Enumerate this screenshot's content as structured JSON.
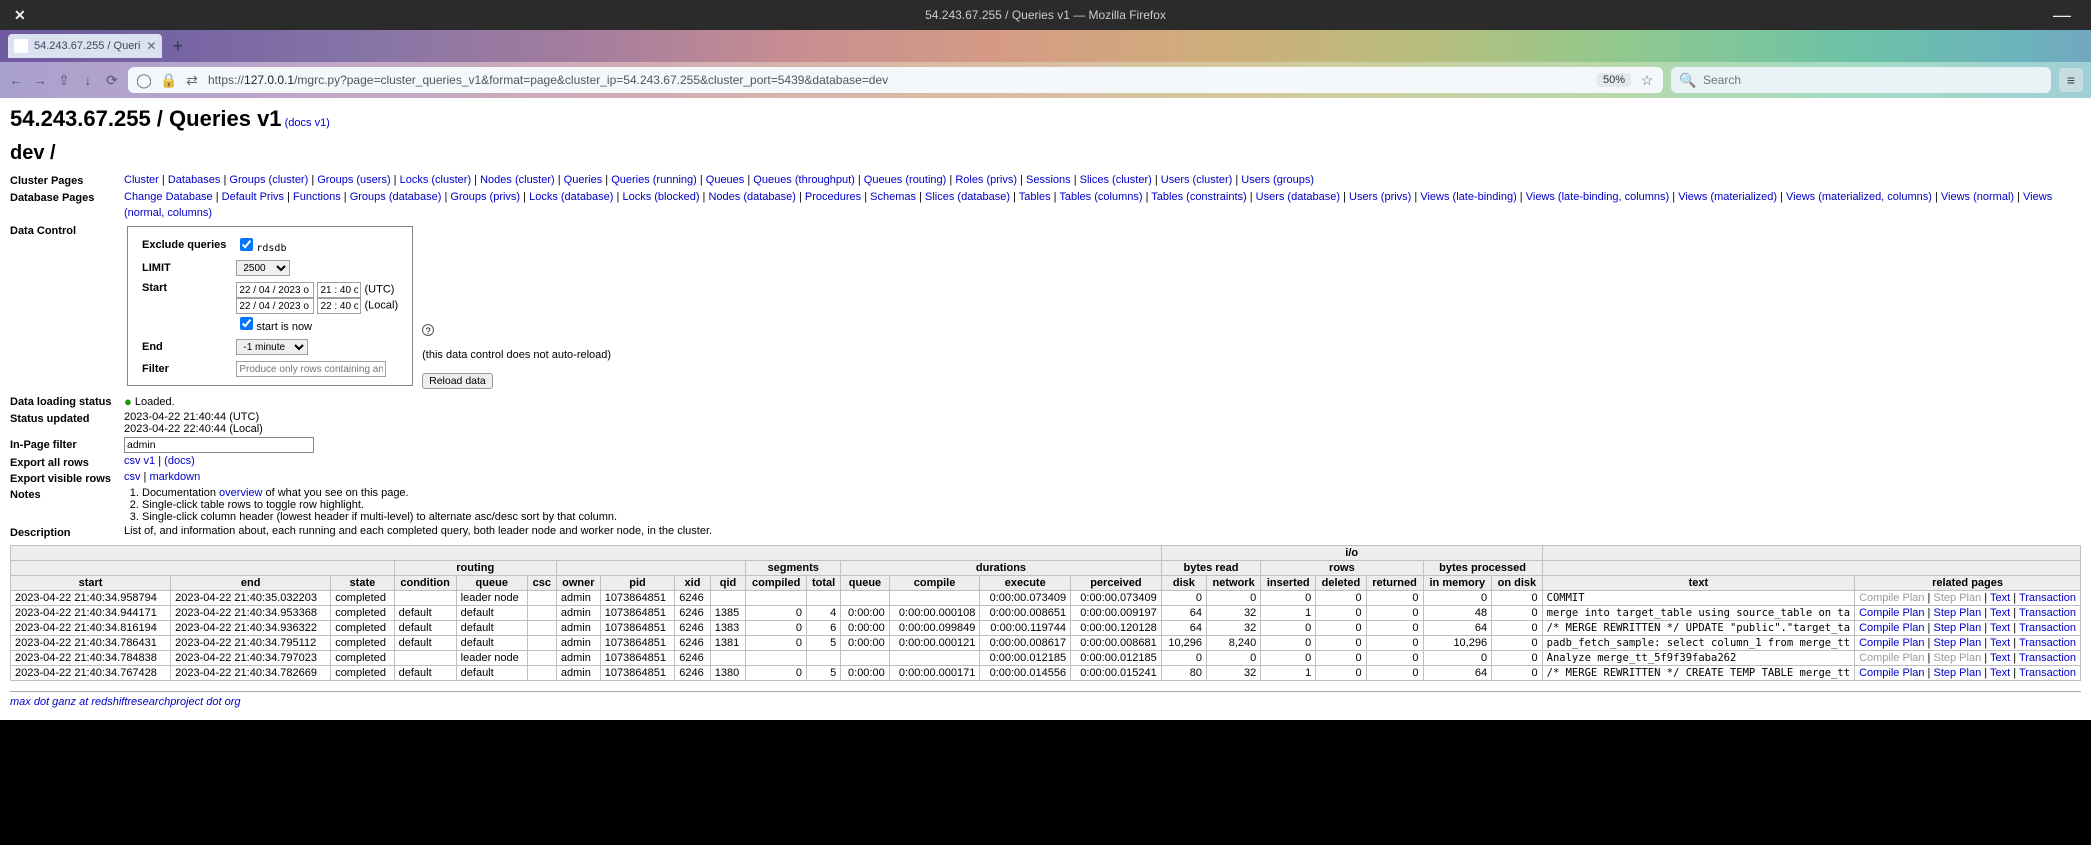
{
  "chrome": {
    "window_title": "54.243.67.255 / Queries v1 — Mozilla Firefox",
    "tab_label": "54.243.67.255 / Queri",
    "url_host": "127.0.0.1",
    "url_scheme": "https://",
    "url_path": "/mgrc.py?page=cluster_queries_v1&format=page&cluster_ip=54.243.67.255&cluster_port=5439&database=dev",
    "zoom": "50%",
    "search_placeholder": "Search"
  },
  "header": {
    "page_title": "54.243.67.255 / Queries v1",
    "docs_label": "(docs v1)",
    "db_path": "dev /"
  },
  "nav": {
    "cluster_label": "Cluster Pages",
    "cluster_links": [
      "Cluster",
      "Databases",
      "Groups (cluster)",
      "Groups (users)",
      "Locks (cluster)",
      "Nodes (cluster)",
      "Queries",
      "Queries (running)",
      "Queues",
      "Queues (throughput)",
      "Queues (routing)",
      "Roles (privs)",
      "Sessions",
      "Slices (cluster)",
      "Users (cluster)",
      "Users (groups)"
    ],
    "database_label": "Database Pages",
    "database_links": [
      "Change Database",
      "Default Privs",
      "Functions",
      "Groups (database)",
      "Groups (privs)",
      "Locks (database)",
      "Locks (blocked)",
      "Nodes (database)",
      "Procedures",
      "Schemas",
      "Slices (database)",
      "Tables",
      "Tables (columns)",
      "Tables (constraints)",
      "Users (database)",
      "Users (privs)",
      "Views (late-binding)",
      "Views (late-binding, columns)",
      "Views (materialized)",
      "Views (materialized, columns)",
      "Views (normal)",
      "Views (normal, columns)"
    ]
  },
  "dc": {
    "section_label": "Data Control",
    "exclude_label": "Exclude queries",
    "exclude_opt": "rdsdb",
    "limit_label": "LIMIT",
    "limit_value": "2500",
    "start_label": "Start",
    "start_date": "22 / 04 / 2023 o",
    "start_time_utc": "21 : 40 o",
    "utc_label": "(UTC)",
    "start_time_local": "22 : 40 o",
    "local_label": "(Local)",
    "start_now": "start is now",
    "end_label": "End",
    "end_value": "-1 minute",
    "filter_label": "Filter",
    "filter_placeholder": "Produce only rows containing any f",
    "autoreload_note": "(this data control does not auto-reload)",
    "reload_button": "Reload data"
  },
  "status": {
    "loading_label": "Data loading status",
    "loading_value": "Loaded.",
    "updated_label": "Status updated",
    "updated_utc": "2023-04-22 21:40:44 (UTC)",
    "updated_local": "2023-04-22 22:40:44 (Local)"
  },
  "inpage": {
    "label": "In-Page filter",
    "value": "admin"
  },
  "export_all": {
    "label": "Export all rows",
    "csv": "csv v1",
    "docs": "(docs)"
  },
  "export_visible": {
    "label": "Export visible rows",
    "csv": "csv",
    "md": "markdown"
  },
  "notes": {
    "label": "Notes",
    "pre": "Documentation ",
    "link": "overview",
    "post": " of what you see on this page.",
    "n2": "Single-click table rows to toggle row highlight.",
    "n3": "Single-click column header (lowest header if multi-level) to alternate asc/desc sort by that column."
  },
  "desc": {
    "label": "Description",
    "text": "List of, and information about, each running and each completed query, both leader node and worker node, in the cluster."
  },
  "table": {
    "group_io": "i/o",
    "group_routing": "routing",
    "group_segments": "segments",
    "group_durations": "durations",
    "group_bytes_read": "bytes read",
    "group_rows": "rows",
    "group_bytes_processed": "bytes processed",
    "cols": [
      "start",
      "end",
      "state",
      "condition",
      "queue",
      "csc",
      "owner",
      "pid",
      "xid",
      "qid",
      "compiled",
      "total",
      "queue",
      "compile",
      "execute",
      "perceived",
      "disk",
      "network",
      "inserted",
      "deleted",
      "returned",
      "in memory",
      "on disk",
      "text",
      "related pages"
    ],
    "links": {
      "compile": "Compile Plan",
      "step": "Step Plan",
      "text": "Text",
      "txn": "Transaction"
    },
    "rows": [
      {
        "start": "2023-04-22 21:40:34.958794",
        "end": "2023-04-22 21:40:35.032203",
        "state": "completed",
        "condition": "",
        "queue": "leader node",
        "csc": "",
        "owner": "admin",
        "pid": "1073864851",
        "xid": "6246",
        "qid": "",
        "compiled": "",
        "total": "",
        "qdur": "",
        "compile": "",
        "execute": "0:00:00.073409",
        "perceived": "0:00:00.073409",
        "disk": "0",
        "network": "0",
        "inserted": "0",
        "deleted": "0",
        "returned": "0",
        "inmem": "0",
        "ondisk": "0",
        "text": "COMMIT",
        "links_muted": true
      },
      {
        "start": "2023-04-22 21:40:34.944171",
        "end": "2023-04-22 21:40:34.953368",
        "state": "completed",
        "condition": "default",
        "queue": "default",
        "csc": "",
        "owner": "admin",
        "pid": "1073864851",
        "xid": "6246",
        "qid": "1385",
        "compiled": "0",
        "total": "4",
        "qdur": "0:00:00",
        "compile": "0:00:00.000108",
        "execute": "0:00:00.008651",
        "perceived": "0:00:00.009197",
        "disk": "64",
        "network": "32",
        "inserted": "1",
        "deleted": "0",
        "returned": "0",
        "inmem": "48",
        "ondisk": "0",
        "text": "merge into target_table using source_table on ta",
        "links_muted": false
      },
      {
        "start": "2023-04-22 21:40:34.816194",
        "end": "2023-04-22 21:40:34.936322",
        "state": "completed",
        "condition": "default",
        "queue": "default",
        "csc": "",
        "owner": "admin",
        "pid": "1073864851",
        "xid": "6246",
        "qid": "1383",
        "compiled": "0",
        "total": "6",
        "qdur": "0:00:00",
        "compile": "0:00:00.099849",
        "execute": "0:00:00.119744",
        "perceived": "0:00:00.120128",
        "disk": "64",
        "network": "32",
        "inserted": "0",
        "deleted": "0",
        "returned": "0",
        "inmem": "64",
        "ondisk": "0",
        "text": "/* MERGE REWRITTEN */ UPDATE \"public\".\"target_ta",
        "links_muted": false
      },
      {
        "start": "2023-04-22 21:40:34.786431",
        "end": "2023-04-22 21:40:34.795112",
        "state": "completed",
        "condition": "default",
        "queue": "default",
        "csc": "",
        "owner": "admin",
        "pid": "1073864851",
        "xid": "6246",
        "qid": "1381",
        "compiled": "0",
        "total": "5",
        "qdur": "0:00:00",
        "compile": "0:00:00.000121",
        "execute": "0:00:00.008617",
        "perceived": "0:00:00.008681",
        "disk": "10,296",
        "network": "8,240",
        "inserted": "0",
        "deleted": "0",
        "returned": "0",
        "inmem": "10,296",
        "ondisk": "0",
        "text": "padb_fetch_sample: select column_1 from merge_tt",
        "links_muted": false
      },
      {
        "start": "2023-04-22 21:40:34.784838",
        "end": "2023-04-22 21:40:34.797023",
        "state": "completed",
        "condition": "",
        "queue": "leader node",
        "csc": "",
        "owner": "admin",
        "pid": "1073864851",
        "xid": "6246",
        "qid": "",
        "compiled": "",
        "total": "",
        "qdur": "",
        "compile": "",
        "execute": "0:00:00.012185",
        "perceived": "0:00:00.012185",
        "disk": "0",
        "network": "0",
        "inserted": "0",
        "deleted": "0",
        "returned": "0",
        "inmem": "0",
        "ondisk": "0",
        "text": "Analyze merge_tt_5f9f39faba262",
        "links_muted": true
      },
      {
        "start": "2023-04-22 21:40:34.767428",
        "end": "2023-04-22 21:40:34.782669",
        "state": "completed",
        "condition": "default",
        "queue": "default",
        "csc": "",
        "owner": "admin",
        "pid": "1073864851",
        "xid": "6246",
        "qid": "1380",
        "compiled": "0",
        "total": "5",
        "qdur": "0:00:00",
        "compile": "0:00:00.000171",
        "execute": "0:00:00.014556",
        "perceived": "0:00:00.015241",
        "disk": "80",
        "network": "32",
        "inserted": "1",
        "deleted": "0",
        "returned": "0",
        "inmem": "64",
        "ondisk": "0",
        "text": "/* MERGE REWRITTEN */ CREATE TEMP TABLE merge_tt",
        "links_muted": false
      }
    ]
  },
  "footer": "max dot ganz at redshiftresearchproject dot org"
}
